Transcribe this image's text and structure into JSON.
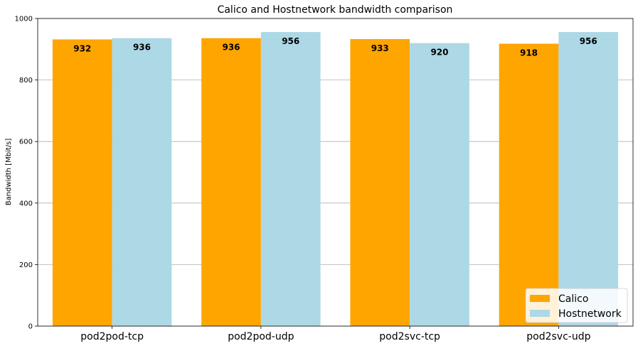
{
  "chart_data": {
    "type": "bar",
    "title": "Calico and Hostnetwork bandwidth comparison",
    "xlabel": "",
    "ylabel": "Bandwidth [Mbit/s]",
    "ylim": [
      0,
      1000
    ],
    "yticks": [
      0,
      200,
      400,
      600,
      800,
      1000
    ],
    "grid": "y",
    "legend_position": "bottom-right",
    "categories": [
      "pod2pod-tcp",
      "pod2pod-udp",
      "pod2svc-tcp",
      "pod2svc-udp"
    ],
    "series": [
      {
        "name": "Calico",
        "color": "#FFA500",
        "values": [
          932,
          936,
          933,
          918
        ]
      },
      {
        "name": "Hostnetwork",
        "color": "#ADD8E6",
        "values": [
          936,
          956,
          920,
          956
        ]
      }
    ]
  }
}
